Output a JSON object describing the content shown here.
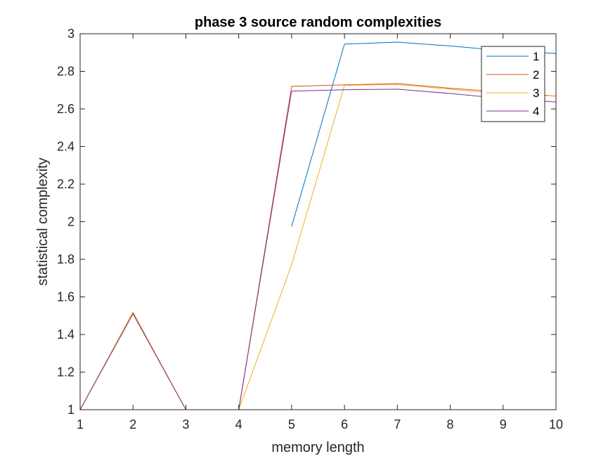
{
  "chart_data": {
    "type": "line",
    "title": "phase 3 source random complexities",
    "xlabel": "memory length",
    "ylabel": "statistical complexity",
    "xlim": [
      1,
      10
    ],
    "ylim": [
      1,
      3
    ],
    "xticks": [
      1,
      2,
      3,
      4,
      5,
      6,
      7,
      8,
      9,
      10
    ],
    "yticks": [
      1,
      1.2,
      1.4,
      1.6,
      1.8,
      2,
      2.2,
      2.4,
      2.6,
      2.8,
      3
    ],
    "xtick_labels": [
      "1",
      "2",
      "3",
      "4",
      "5",
      "6",
      "7",
      "8",
      "9",
      "10"
    ],
    "ytick_labels": [
      "1",
      "1.2",
      "1.4",
      "1.6",
      "1.8",
      "2",
      "2.2",
      "2.4",
      "2.6",
      "2.8",
      "3"
    ],
    "grid": false,
    "legend_position": "top-right",
    "series": [
      {
        "name": "1",
        "color": "#0072BD",
        "x": [
          5,
          6,
          7,
          8,
          9,
          10
        ],
        "y": [
          1.975,
          2.945,
          2.955,
          2.935,
          2.91,
          2.895
        ]
      },
      {
        "name": "2",
        "color": "#D95319",
        "x": [
          1,
          2,
          3,
          4,
          5,
          6,
          7,
          8,
          9,
          10
        ],
        "y": [
          1.0,
          1.515,
          1.0,
          1.0,
          2.72,
          2.728,
          2.735,
          2.71,
          2.69,
          2.668
        ]
      },
      {
        "name": "3",
        "color": "#EDB120",
        "x": [
          1,
          2,
          3,
          4,
          5,
          6,
          7,
          8,
          9,
          10
        ],
        "y": [
          1.0,
          1.52,
          1.0,
          1.0,
          1.77,
          2.725,
          2.73,
          2.705,
          2.68,
          2.668
        ]
      },
      {
        "name": "4",
        "color": "#7E2F8E",
        "x": [
          1,
          2,
          3,
          4,
          5,
          6,
          7,
          8,
          9,
          10
        ],
        "y": [
          1.0,
          1.51,
          1.0,
          1.0,
          2.695,
          2.702,
          2.705,
          2.682,
          2.655,
          2.637
        ]
      }
    ]
  }
}
